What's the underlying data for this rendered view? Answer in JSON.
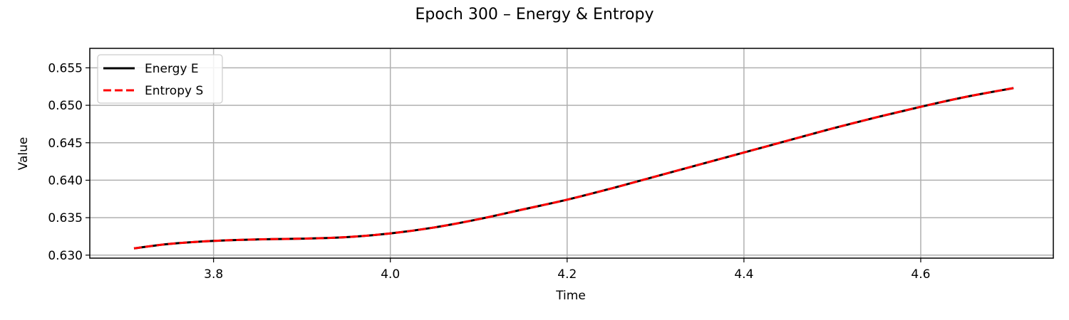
{
  "chart_data": {
    "type": "line",
    "title": "Epoch 300 – Energy & Entropy",
    "xlabel": "Time",
    "ylabel": "Value",
    "xlim": [
      3.66,
      4.75
    ],
    "ylim": [
      0.6296,
      0.6576
    ],
    "xticks": [
      3.8,
      4.0,
      4.2,
      4.4,
      4.6
    ],
    "xtick_labels": [
      "3.8",
      "4.0",
      "4.2",
      "4.4",
      "4.6"
    ],
    "yticks": [
      0.63,
      0.635,
      0.64,
      0.645,
      0.65,
      0.655
    ],
    "ytick_labels": [
      "0.630",
      "0.635",
      "0.640",
      "0.645",
      "0.650",
      "0.655"
    ],
    "grid": true,
    "legend_position": "top-left",
    "x": [
      3.71,
      3.75,
      3.8,
      3.85,
      3.9,
      3.95,
      4.0,
      4.05,
      4.1,
      4.15,
      4.2,
      4.25,
      4.3,
      4.35,
      4.4,
      4.45,
      4.5,
      4.55,
      4.6,
      4.65,
      4.705
    ],
    "series": [
      {
        "name": "Energy E",
        "color": "#000000",
        "style": "solid",
        "values": [
          0.6309,
          0.6315,
          0.6319,
          0.6321,
          0.6322,
          0.6324,
          0.6329,
          0.6337,
          0.6348,
          0.6361,
          0.6374,
          0.6389,
          0.6405,
          0.6421,
          0.6437,
          0.6453,
          0.6469,
          0.6484,
          0.6498,
          0.6511,
          0.6523
        ]
      },
      {
        "name": "Entropy S",
        "color": "#ff0000",
        "style": "dashed",
        "values": [
          0.6309,
          0.6315,
          0.6319,
          0.6321,
          0.6322,
          0.6324,
          0.6329,
          0.6337,
          0.6348,
          0.6361,
          0.6374,
          0.6389,
          0.6405,
          0.6421,
          0.6437,
          0.6453,
          0.6469,
          0.6484,
          0.6498,
          0.6511,
          0.6523
        ]
      }
    ]
  }
}
